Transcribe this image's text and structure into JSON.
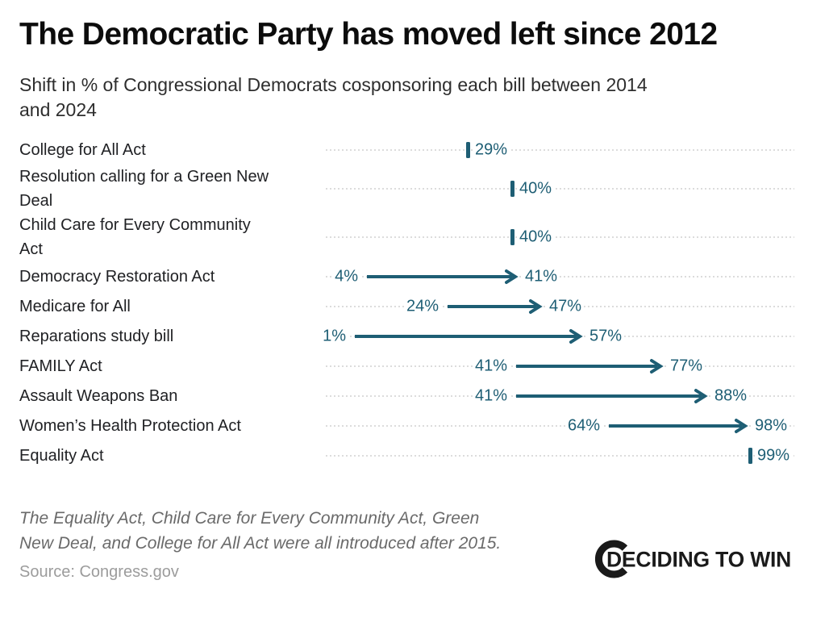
{
  "page": {
    "title": "The Democratic Party has moved left since 2012",
    "subtitle_lines": [
      "Shift in % of Congressional Democrats cosponsoring each bill between 2014",
      "and 2024"
    ],
    "footnote_lines": [
      "The Equality Act, Child Care for Every Community Act, Green",
      "New Deal, and College for All Act were all introduced after 2015."
    ],
    "source": "Source: Congress.gov",
    "logo_text": "DECIDING TO WIN"
  },
  "colors": {
    "accent_teal": "#1e5e74",
    "leader_dots": "#dcdcdc",
    "title_text": "#0c0c0c",
    "label_text": "#202124",
    "footnote_text": "#6a6a6a",
    "source_text": "#9c9c9c",
    "logo_black": "#1a1a1a"
  },
  "chart_data": {
    "type": "arrow",
    "title": "The Democratic Party has moved left since 2012",
    "subtitle": "Shift in % of Congressional Democrats cosponsoring each bill between 2014 and 2024",
    "unit": "%",
    "xlim": [
      0,
      100
    ],
    "legend_position": "none",
    "grid": "dotted-row-leaders",
    "rows": [
      {
        "label": "College for All Act",
        "label_lines": [
          "College for All Act"
        ],
        "start": null,
        "end": 29,
        "start_label": "",
        "end_label": "29%"
      },
      {
        "label": "Resolution calling for a Green New Deal",
        "label_lines": [
          "Resolution calling for a Green New",
          "Deal"
        ],
        "start": null,
        "end": 40,
        "start_label": "",
        "end_label": "40%"
      },
      {
        "label": "Child Care for Every Community Act",
        "label_lines": [
          "Child Care for Every Community",
          "Act"
        ],
        "start": null,
        "end": 40,
        "start_label": "",
        "end_label": "40%"
      },
      {
        "label": "Democracy Restoration Act",
        "label_lines": [
          "Democracy Restoration Act"
        ],
        "start": 4,
        "end": 41,
        "start_label": "4%",
        "end_label": "41%"
      },
      {
        "label": "Medicare for All",
        "label_lines": [
          "Medicare for All"
        ],
        "start": 24,
        "end": 47,
        "start_label": "24%",
        "end_label": "47%"
      },
      {
        "label": "Reparations study bill",
        "label_lines": [
          "Reparations study bill"
        ],
        "start": 1,
        "end": 57,
        "start_label": "1%",
        "end_label": "57%"
      },
      {
        "label": "FAMILY Act",
        "label_lines": [
          "FAMILY Act"
        ],
        "start": 41,
        "end": 77,
        "start_label": "41%",
        "end_label": "77%"
      },
      {
        "label": "Assault Weapons Ban",
        "label_lines": [
          "Assault Weapons Ban"
        ],
        "start": 41,
        "end": 88,
        "start_label": "41%",
        "end_label": "88%"
      },
      {
        "label": "Women’s Health Protection Act",
        "label_lines": [
          "Women’s Health Protection Act"
        ],
        "start": 64,
        "end": 98,
        "start_label": "64%",
        "end_label": "98%"
      },
      {
        "label": "Equality Act",
        "label_lines": [
          "Equality Act"
        ],
        "start": null,
        "end": 99,
        "start_label": "",
        "end_label": "99%"
      }
    ]
  }
}
